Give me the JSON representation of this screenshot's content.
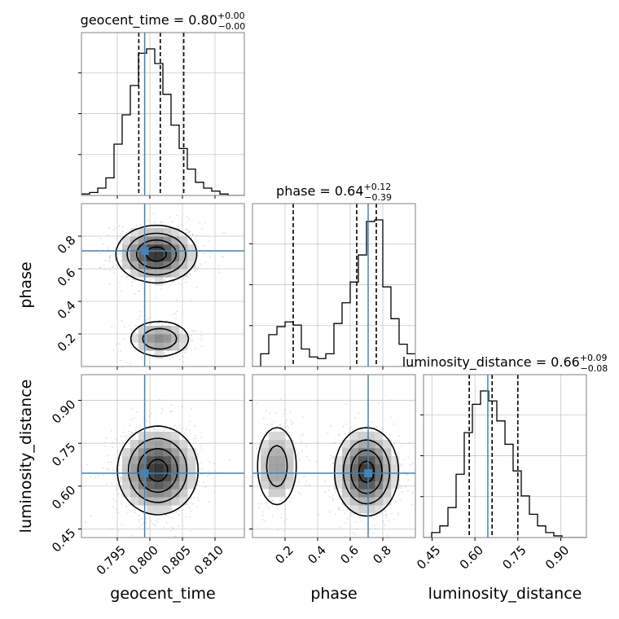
{
  "colors": {
    "truth": "#4682b4",
    "line": "#000000",
    "grid": "#c8c8c8",
    "points": "#9a9a9a"
  },
  "chart_data": {
    "type": "corner",
    "parameters": [
      {
        "name": "geocent_time",
        "title_prefix": "geocent_time = 0.80",
        "plus": "+0.00",
        "minus": "−0.00",
        "range": [
          0.7895,
          0.8145
        ],
        "ticks": [
          0.795,
          0.8,
          0.805,
          0.81
        ],
        "tick_labels": [
          "0.795",
          "0.800",
          "0.805",
          "0.810"
        ],
        "truth": 0.7992,
        "quantiles": [
          0.7983,
          0.8016,
          0.8052
        ]
      },
      {
        "name": "phase",
        "title_prefix": "phase = 0.64",
        "plus": "+0.12",
        "minus": "−0.39",
        "range": [
          0.0,
          1.0
        ],
        "ticks": [
          0.2,
          0.4,
          0.6,
          0.8
        ],
        "tick_labels": [
          "0.2",
          "0.4",
          "0.6",
          "0.8"
        ],
        "truth": 0.71,
        "quantiles": [
          0.25,
          0.64,
          0.76
        ]
      },
      {
        "name": "luminosity_distance",
        "title_prefix": "luminosity_distance = 0.66",
        "plus": "+0.09",
        "minus": "−0.08",
        "range": [
          0.42,
          0.99
        ],
        "ticks": [
          0.45,
          0.6,
          0.75,
          0.9
        ],
        "tick_labels": [
          "0.45",
          "0.60",
          "0.75",
          "0.90"
        ],
        "truth": 0.645,
        "quantiles": [
          0.58,
          0.66,
          0.75
        ]
      }
    ],
    "histograms": [
      {
        "param": 0,
        "edges_start": 0.7895,
        "bin_width": 0.00125,
        "counts": [
          0.01,
          0.02,
          0.05,
          0.12,
          0.35,
          0.55,
          0.75,
          0.97,
          1.0,
          0.9,
          0.69,
          0.48,
          0.32,
          0.18,
          0.09,
          0.05,
          0.03,
          0.01,
          0.0,
          0.0
        ]
      },
      {
        "param": 1,
        "edges_start": 0.0,
        "bin_width": 0.05,
        "counts": [
          0.0,
          0.08,
          0.2,
          0.25,
          0.28,
          0.26,
          0.11,
          0.06,
          0.05,
          0.08,
          0.27,
          0.4,
          0.53,
          0.7,
          0.91,
          0.92,
          0.5,
          0.3,
          0.14,
          0.08
        ]
      },
      {
        "param": 2,
        "edges_start": 0.42,
        "bin_width": 0.0285,
        "counts": [
          0.0,
          0.03,
          0.07,
          0.18,
          0.38,
          0.63,
          0.8,
          0.88,
          0.82,
          0.7,
          0.56,
          0.4,
          0.25,
          0.14,
          0.07,
          0.03,
          0.01,
          0.0,
          0.0,
          0.0
        ]
      }
    ],
    "pairs": [
      {
        "x_param": 0,
        "y_param": 1,
        "modes": [
          {
            "cx": 0.801,
            "cy": 0.69,
            "sx": 0.003,
            "sy": 0.085,
            "weight": 0.75
          },
          {
            "cx": 0.8015,
            "cy": 0.17,
            "sx": 0.0025,
            "sy": 0.06,
            "weight": 0.25
          }
        ]
      },
      {
        "x_param": 0,
        "y_param": 2,
        "modes": [
          {
            "cx": 0.8012,
            "cy": 0.655,
            "sx": 0.003,
            "sy": 0.075,
            "weight": 1.0
          }
        ]
      },
      {
        "x_param": 1,
        "y_param": 2,
        "modes": [
          {
            "cx": 0.7,
            "cy": 0.65,
            "sx": 0.095,
            "sy": 0.075,
            "weight": 0.72
          },
          {
            "cx": 0.15,
            "cy": 0.67,
            "sx": 0.07,
            "sy": 0.08,
            "weight": 0.28
          }
        ]
      }
    ]
  }
}
